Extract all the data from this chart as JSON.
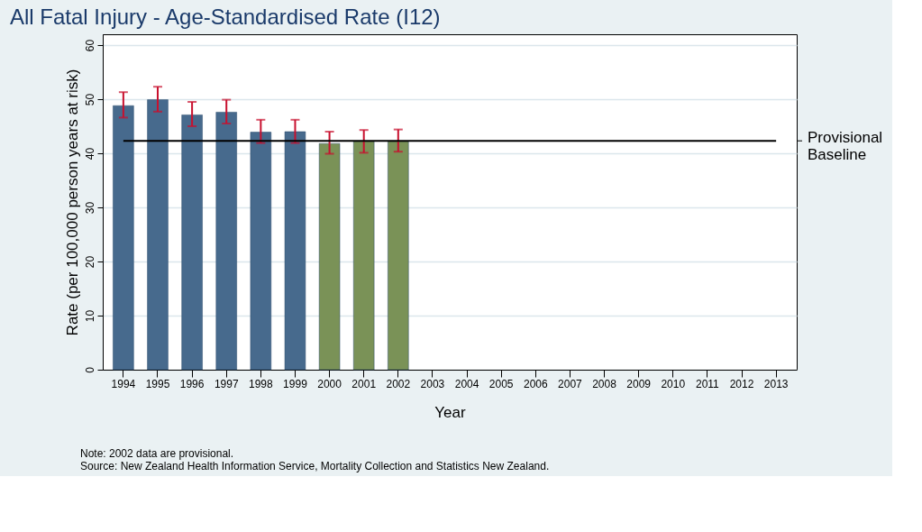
{
  "chart_data": {
    "type": "bar",
    "title": "All Fatal Injury - Age-Standardised Rate (I12)",
    "xlabel": "Year",
    "ylabel": "Rate (per 100,000 person years at risk)",
    "categories": [
      "1994",
      "1995",
      "1996",
      "1997",
      "1998",
      "1999",
      "2000",
      "2001",
      "2002",
      "2003",
      "2004",
      "2005",
      "2006",
      "2007",
      "2008",
      "2009",
      "2010",
      "2011",
      "2012",
      "2013"
    ],
    "values": [
      48.8,
      49.9,
      47.1,
      47.6,
      43.9,
      44.0,
      41.8,
      42.2,
      42.2,
      null,
      null,
      null,
      null,
      null,
      null,
      null,
      null,
      null,
      null,
      null
    ],
    "colors": [
      "#476a8d",
      "#476a8d",
      "#476a8d",
      "#476a8d",
      "#476a8d",
      "#476a8d",
      "#7a9257",
      "#7a9257",
      "#7a9257",
      "#476a8d",
      "#476a8d",
      "#476a8d",
      "#476a8d",
      "#476a8d",
      "#476a8d",
      "#476a8d",
      "#476a8d",
      "#476a8d",
      "#476a8d",
      "#476a8d"
    ],
    "errors": [
      [
        46.6,
        51.3
      ],
      [
        47.7,
        52.3
      ],
      [
        45.0,
        49.5
      ],
      [
        45.5,
        49.9
      ],
      [
        41.9,
        46.2
      ],
      [
        41.9,
        46.2
      ],
      [
        39.9,
        44.0
      ],
      [
        40.1,
        44.3
      ],
      [
        40.3,
        44.4
      ],
      null,
      null,
      null,
      null,
      null,
      null,
      null,
      null,
      null,
      null,
      null
    ],
    "ylim": [
      0,
      62
    ],
    "yticks": [
      0,
      10,
      20,
      30,
      40,
      50,
      60
    ],
    "grid": "y",
    "ref_lines": [
      {
        "axis": "y",
        "value": 42.3,
        "label": "Provisional\nBaseline",
        "color": "#000000"
      }
    ],
    "annotations": [
      "Note: 2002 data are provisional.",
      "Source: New Zealand Health Information Service, Mortality Collection and Statistics New Zealand."
    ]
  }
}
